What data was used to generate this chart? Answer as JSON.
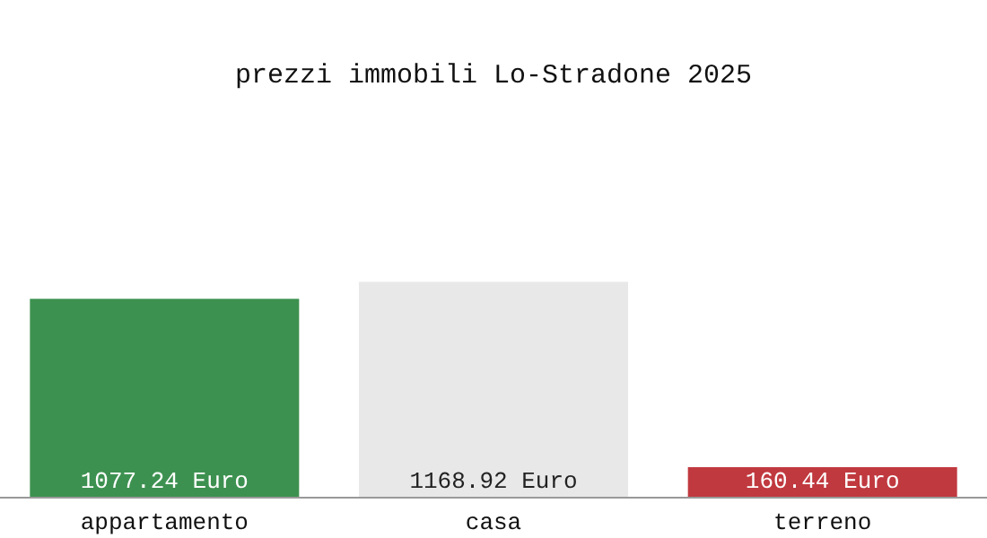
{
  "chart_data": {
    "type": "bar",
    "title": "prezzi immobili Lo-Stradone 2025",
    "categories": [
      "appartamento",
      "casa",
      "terreno"
    ],
    "values": [
      1077.24,
      1168.92,
      160.44
    ],
    "colors": [
      "#3d9150",
      "#e8e8e8",
      "#c0393f"
    ],
    "value_labels": [
      "1077.24 Euro",
      "1168.92 Euro",
      "160.44 Euro"
    ]
  }
}
